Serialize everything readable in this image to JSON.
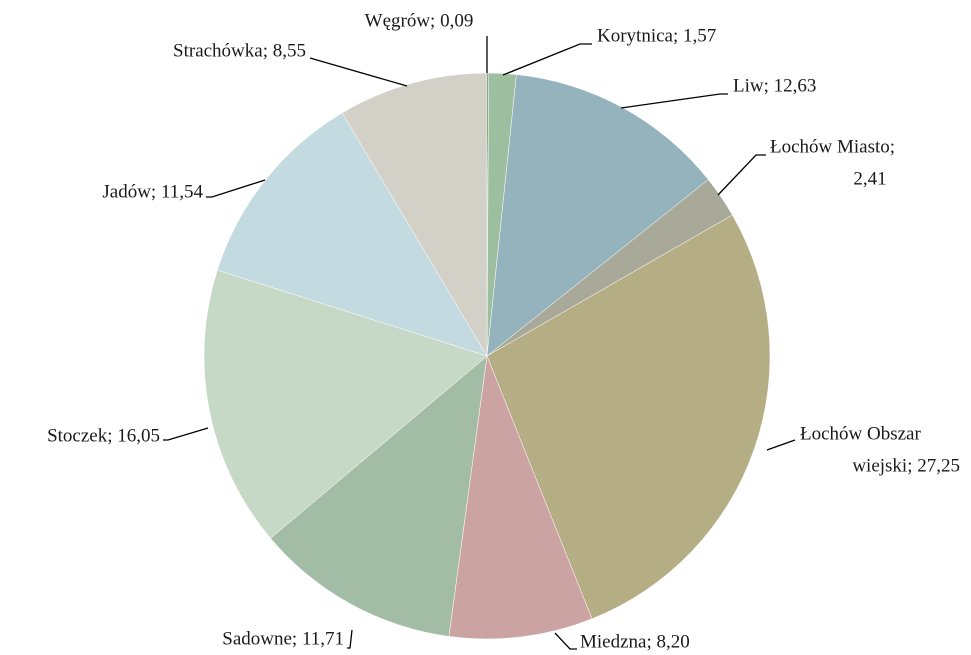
{
  "chart_data": {
    "type": "pie",
    "values": [
      0.09,
      1.57,
      12.63,
      2.41,
      27.25,
      8.2,
      11.71,
      16.05,
      11.54,
      8.55
    ],
    "value_labels": [
      [
        "Węgrów; 0,09"
      ],
      [
        "Korytnica; 1,57"
      ],
      [
        "Liw; 12,63"
      ],
      [
        "Łochów Miasto;",
        "2,41"
      ],
      [
        "Łochów Obszar",
        "wiejski; 27,25"
      ],
      [
        "Miedzna; 8,20"
      ],
      [
        "Sadowne; 11,71"
      ],
      [
        "Stoczek; 16,05"
      ],
      [
        "Jadów; 11,54"
      ],
      [
        "Strachówka; 8,55"
      ]
    ],
    "colors": [
      "#4f6f4f",
      "#9dbf9f",
      "#95b3bd",
      "#a9a99a",
      "#b5ae84",
      "#cca3a3",
      "#a3bca5",
      "#c6d9c6",
      "#c2dae0",
      "#d3d0c8"
    ]
  }
}
